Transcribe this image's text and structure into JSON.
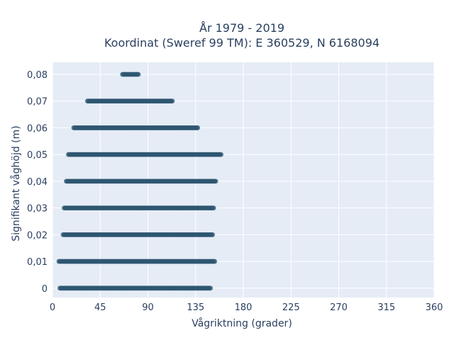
{
  "chart_data": {
    "type": "scatter",
    "title_line1": "År 1979 - 2019",
    "title_line2": "Koordinat (Sweref 99 TM): E 360529, N 6168094",
    "xlabel": "Vågriktning (grader)",
    "ylabel": "Signifikant våghöjd (m)",
    "xlim": [
      0,
      360
    ],
    "ylim": [
      -0.0035,
      0.0845
    ],
    "x_ticks": [
      0,
      45,
      90,
      135,
      180,
      225,
      270,
      315,
      360
    ],
    "x_tick_labels": [
      "0",
      "45",
      "90",
      "135",
      "180",
      "225",
      "270",
      "315",
      "360"
    ],
    "y_ticks": [
      0,
      0.01,
      0.02,
      0.03,
      0.04,
      0.05,
      0.06,
      0.07,
      0.08
    ],
    "y_tick_labels": [
      "0",
      "0,01",
      "0,02",
      "0,03",
      "0,04",
      "0,05",
      "0,06",
      "0,07",
      "0,08"
    ],
    "grid": true,
    "background_color": "#e5ecf6",
    "marker_color": "#2e5670",
    "rows": [
      {
        "y": 0.0,
        "x_min": 7,
        "x_max": 149
      },
      {
        "y": 0.01,
        "x_min": 6,
        "x_max": 153
      },
      {
        "y": 0.02,
        "x_min": 10,
        "x_max": 151
      },
      {
        "y": 0.03,
        "x_min": 11,
        "x_max": 152
      },
      {
        "y": 0.04,
        "x_min": 13,
        "x_max": 154
      },
      {
        "y": 0.05,
        "x_min": 15,
        "x_max": 159
      },
      {
        "y": 0.06,
        "x_min": 20,
        "x_max": 137
      },
      {
        "y": 0.07,
        "x_min": 33,
        "x_max": 113
      },
      {
        "y": 0.08,
        "x_min": 66,
        "x_max": 81
      }
    ]
  }
}
